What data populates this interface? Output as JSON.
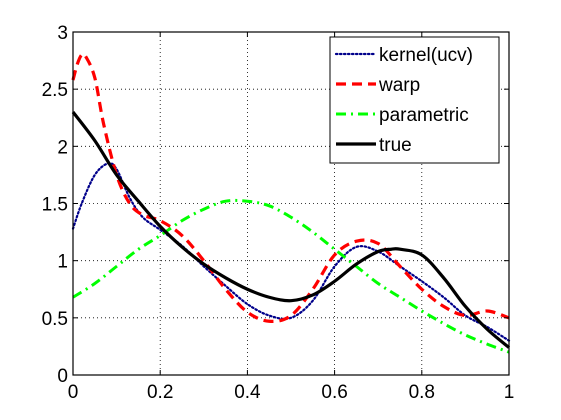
{
  "chart_data": {
    "type": "line",
    "title": "",
    "xlabel": "",
    "ylabel": "",
    "xlim": [
      0,
      1
    ],
    "ylim": [
      0,
      3
    ],
    "xticks": [
      "0",
      "0.2",
      "0.4",
      "0.6",
      "0.8",
      "1"
    ],
    "yticks": [
      "0",
      "0.5",
      "1",
      "1.5",
      "2",
      "2.5",
      "3"
    ],
    "grid": true,
    "legend_position": "top-right",
    "series": [
      {
        "name": "kernel(ucv)",
        "color": "#00008b",
        "style": "dotted",
        "x": [
          0,
          0.02,
          0.05,
          0.08,
          0.1,
          0.13,
          0.16,
          0.2,
          0.25,
          0.3,
          0.35,
          0.4,
          0.45,
          0.5,
          0.55,
          0.6,
          0.65,
          0.7,
          0.75,
          0.8,
          0.85,
          0.9,
          0.95,
          1
        ],
        "y": [
          1.28,
          1.5,
          1.75,
          1.85,
          1.8,
          1.55,
          1.38,
          1.27,
          1.13,
          0.95,
          0.78,
          0.62,
          0.52,
          0.5,
          0.65,
          0.95,
          1.12,
          1.08,
          0.95,
          0.82,
          0.68,
          0.52,
          0.42,
          0.3
        ]
      },
      {
        "name": "warp",
        "color": "#ff0000",
        "style": "dashed",
        "x": [
          0,
          0.01,
          0.02,
          0.03,
          0.05,
          0.07,
          0.1,
          0.13,
          0.16,
          0.2,
          0.25,
          0.3,
          0.35,
          0.4,
          0.45,
          0.5,
          0.55,
          0.6,
          0.65,
          0.7,
          0.75,
          0.8,
          0.85,
          0.9,
          0.95,
          1
        ],
        "y": [
          2.58,
          2.72,
          2.8,
          2.78,
          2.6,
          2.2,
          1.75,
          1.5,
          1.4,
          1.35,
          1.22,
          1.0,
          0.75,
          0.55,
          0.47,
          0.52,
          0.75,
          1.05,
          1.17,
          1.15,
          0.95,
          0.75,
          0.6,
          0.52,
          0.56,
          0.5
        ]
      },
      {
        "name": "parametric",
        "color": "#00ff00",
        "style": "dashdot",
        "x": [
          0,
          0.05,
          0.1,
          0.15,
          0.2,
          0.25,
          0.3,
          0.35,
          0.4,
          0.45,
          0.5,
          0.55,
          0.6,
          0.65,
          0.7,
          0.75,
          0.8,
          0.85,
          0.9,
          0.95,
          1
        ],
        "y": [
          0.68,
          0.8,
          0.95,
          1.1,
          1.22,
          1.35,
          1.45,
          1.52,
          1.52,
          1.48,
          1.38,
          1.25,
          1.1,
          0.95,
          0.8,
          0.68,
          0.56,
          0.45,
          0.35,
          0.27,
          0.2
        ]
      },
      {
        "name": "true",
        "color": "#000000",
        "style": "solid",
        "x": [
          0,
          0.05,
          0.1,
          0.15,
          0.2,
          0.25,
          0.3,
          0.35,
          0.4,
          0.45,
          0.5,
          0.55,
          0.6,
          0.65,
          0.7,
          0.73,
          0.75,
          0.8,
          0.85,
          0.9,
          0.95,
          1
        ],
        "y": [
          2.3,
          2.05,
          1.75,
          1.52,
          1.3,
          1.12,
          0.97,
          0.85,
          0.75,
          0.68,
          0.65,
          0.7,
          0.82,
          0.97,
          1.08,
          1.1,
          1.1,
          1.05,
          0.85,
          0.6,
          0.4,
          0.24
        ]
      }
    ]
  }
}
